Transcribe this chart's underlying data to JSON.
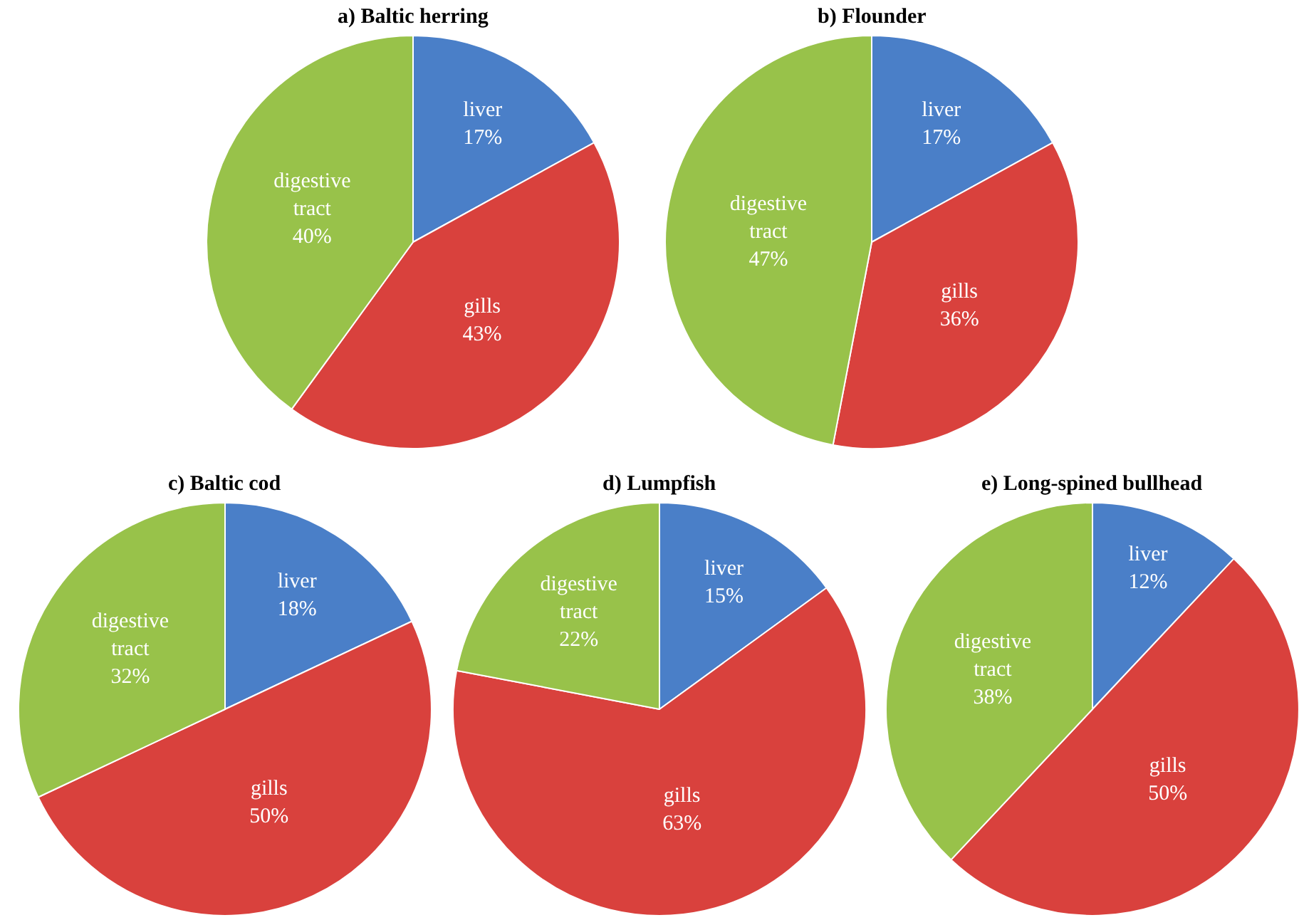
{
  "chart_data": [
    {
      "type": "pie",
      "title": "a) Baltic herring",
      "categories": [
        "liver",
        "gills",
        "digestive tract"
      ],
      "values": [
        17,
        43,
        40
      ],
      "value_labels": [
        "17%",
        "43%",
        "40%"
      ],
      "colors": [
        "#4a7fc8",
        "#d9413d",
        "#98c24a"
      ],
      "legend": false
    },
    {
      "type": "pie",
      "title": "b) Flounder",
      "categories": [
        "liver",
        "gills",
        "digestive tract"
      ],
      "values": [
        17,
        36,
        47
      ],
      "value_labels": [
        "17%",
        "36%",
        "47%"
      ],
      "colors": [
        "#4a7fc8",
        "#d9413d",
        "#98c24a"
      ],
      "legend": false
    },
    {
      "type": "pie",
      "title": "c) Baltic cod",
      "categories": [
        "liver",
        "gills",
        "digestive tract"
      ],
      "values": [
        18,
        50,
        32
      ],
      "value_labels": [
        "18%",
        "50%",
        "32%"
      ],
      "colors": [
        "#4a7fc8",
        "#d9413d",
        "#98c24a"
      ],
      "legend": false
    },
    {
      "type": "pie",
      "title": "d) Lumpfish",
      "categories": [
        "liver",
        "gills",
        "digestive tract"
      ],
      "values": [
        15,
        63,
        22
      ],
      "value_labels": [
        "15%",
        "63%",
        "22%"
      ],
      "colors": [
        "#4a7fc8",
        "#d9413d",
        "#98c24a"
      ],
      "legend": false
    },
    {
      "type": "pie",
      "title": "e) Long-spined bullhead",
      "categories": [
        "liver",
        "gills",
        "digestive tract"
      ],
      "values": [
        12,
        50,
        38
      ],
      "value_labels": [
        "12%",
        "50%",
        "38%"
      ],
      "colors": [
        "#4a7fc8",
        "#d9413d",
        "#98c24a"
      ],
      "legend": false
    }
  ]
}
